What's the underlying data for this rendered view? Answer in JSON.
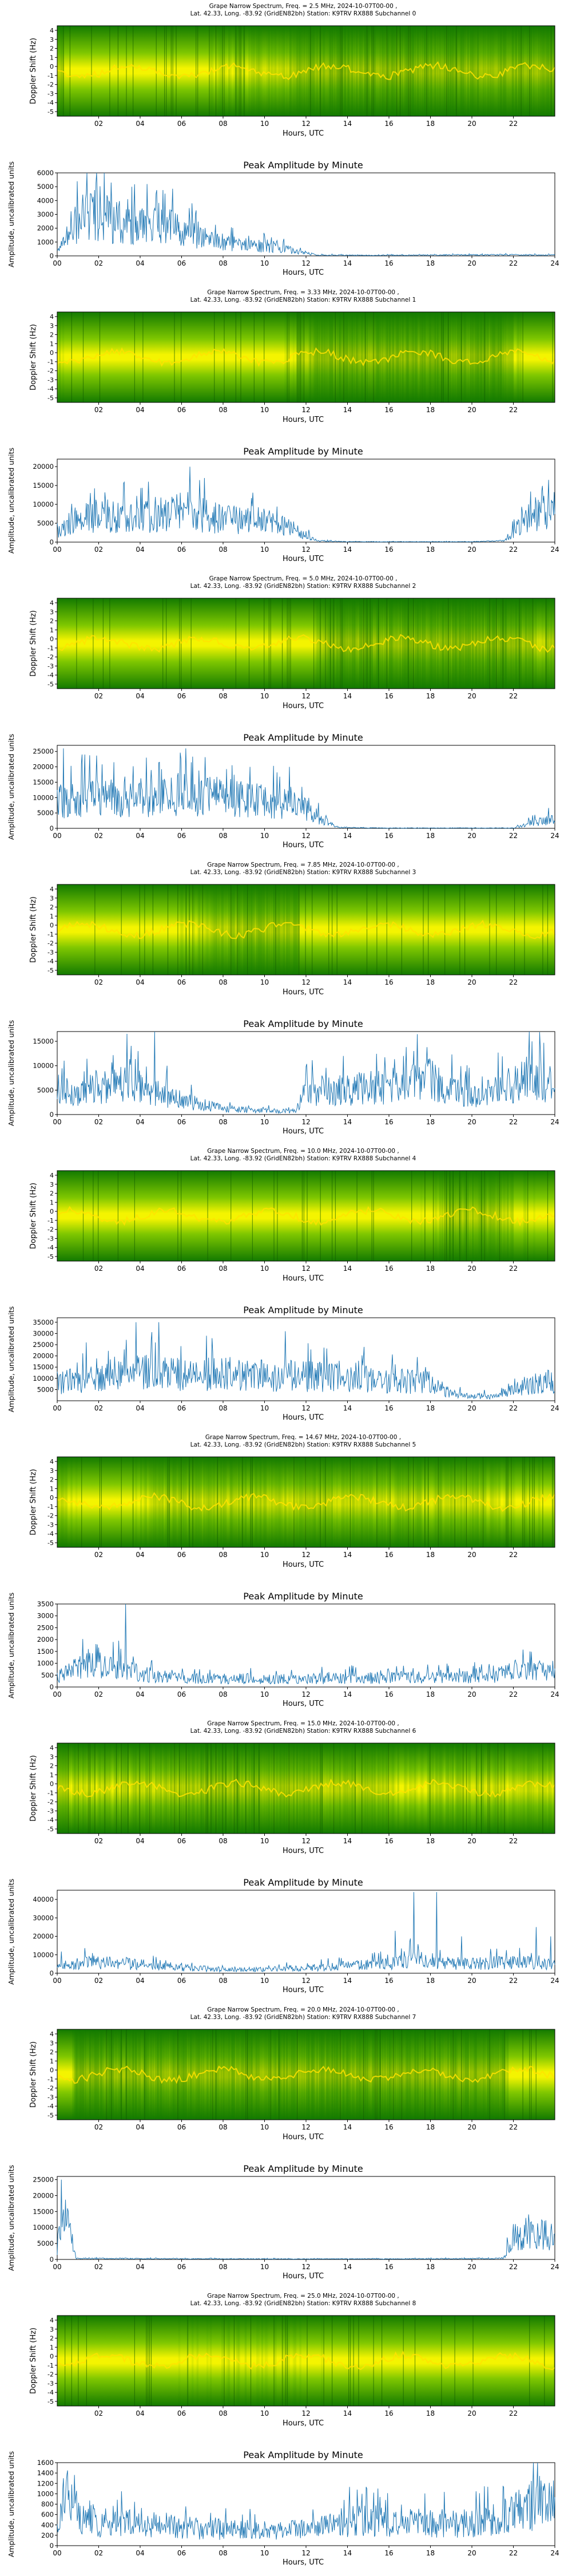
{
  "chart_data": {
    "type": "spectrogram+line",
    "xlabel": "Hours, UTC",
    "spectrum_ylabel": "Doppler Shift (Hz)",
    "spectrum_yticks": [
      "4",
      "3",
      "2",
      "1",
      "0",
      "-1",
      "-2",
      "-3",
      "-4",
      "-5"
    ],
    "spectrum_xticks": [
      "02",
      "04",
      "06",
      "08",
      "10",
      "12",
      "14",
      "16",
      "18",
      "20",
      "22"
    ],
    "amp_title": "Peak Amplitude by Minute",
    "amp_ylabel": "Amplitude, uncalibrated units",
    "amp_xticks": [
      "00",
      "02",
      "04",
      "06",
      "08",
      "10",
      "12",
      "14",
      "16",
      "18",
      "20",
      "22",
      "24"
    ],
    "xlim_hours": [
      0,
      24
    ],
    "colors": {
      "line": "#1f77b4",
      "spec_dark": "#137a00",
      "spec_mid": "#7fc700",
      "spec_bright": "#f4f400"
    },
    "panels": [
      {
        "title": "Grape Narrow Spectrum, Freq. = 2.5 MHz, 2024-10-07T00-00 ,",
        "subtitle": "Lat.  42.33, Long. -83.92 (GridEN82bh) Station: K9TRV RX888 Subchannel 0",
        "amp_yticks": [
          "0",
          "1000",
          "2000",
          "3000",
          "4000",
          "5000",
          "6000"
        ],
        "amp_ymax": 6000,
        "amp_profile": [
          [
            0,
            300
          ],
          [
            0.5,
            1200
          ],
          [
            1,
            2600
          ],
          [
            2,
            3000
          ],
          [
            3,
            2300
          ],
          [
            4,
            2100
          ],
          [
            5,
            2400
          ],
          [
            6,
            1900
          ],
          [
            7,
            1300
          ],
          [
            8,
            900
          ],
          [
            9,
            800
          ],
          [
            10,
            700
          ],
          [
            11,
            500
          ],
          [
            12,
            200
          ],
          [
            12.5,
            60
          ],
          [
            15,
            40
          ],
          [
            18,
            60
          ],
          [
            21,
            80
          ],
          [
            24,
            60
          ]
        ],
        "amp_spikes": [
          [
            1.9,
            6000
          ],
          [
            2.6,
            5300
          ],
          [
            5.2,
            4500
          ],
          [
            6.5,
            3800
          ],
          [
            3.4,
            4100
          ],
          [
            1.4,
            4500
          ]
        ]
      },
      {
        "title": "Grape Narrow Spectrum, Freq. = 3.33 MHz, 2024-10-07T00-00 ,",
        "subtitle": "Lat.  42.33, Long. -83.92 (GridEN82bh) Station: K9TRV RX888 Subchannel 1",
        "amp_yticks": [
          "0",
          "5000",
          "10000",
          "15000",
          "20000"
        ],
        "amp_ymax": 22000,
        "amp_profile": [
          [
            0,
            3000
          ],
          [
            1,
            6000
          ],
          [
            2,
            7000
          ],
          [
            4,
            6500
          ],
          [
            6,
            8000
          ],
          [
            7,
            7000
          ],
          [
            8,
            6000
          ],
          [
            9,
            6000
          ],
          [
            10,
            5500
          ],
          [
            11,
            4500
          ],
          [
            12,
            2000
          ],
          [
            12.5,
            300
          ],
          [
            14,
            100
          ],
          [
            20,
            100
          ],
          [
            21.5,
            300
          ],
          [
            22.5,
            5000
          ],
          [
            23.5,
            10000
          ],
          [
            24,
            8000
          ]
        ],
        "amp_spikes": [
          [
            6.4,
            20000
          ],
          [
            7.1,
            17000
          ],
          [
            4.4,
            16000
          ],
          [
            1.6,
            13000
          ],
          [
            23.7,
            16500
          ]
        ]
      },
      {
        "title": "Grape Narrow Spectrum, Freq. = 5.0 MHz, 2024-10-07T00-00 ,",
        "subtitle": "Lat.  42.33, Long. -83.92 (GridEN82bh) Station: K9TRV RX888 Subchannel 2",
        "amp_yticks": [
          "0",
          "5000",
          "10000",
          "15000",
          "20000",
          "25000"
        ],
        "amp_ymax": 27000,
        "amp_profile": [
          [
            0,
            9000
          ],
          [
            2,
            10000
          ],
          [
            4,
            10000
          ],
          [
            6,
            11000
          ],
          [
            8,
            10000
          ],
          [
            10,
            9000
          ],
          [
            11,
            8000
          ],
          [
            12,
            6000
          ],
          [
            13,
            2000
          ],
          [
            13.5,
            300
          ],
          [
            16,
            100
          ],
          [
            22,
            100
          ],
          [
            23,
            2000
          ],
          [
            24,
            3000
          ]
        ],
        "amp_spikes": [
          [
            0.3,
            26000
          ],
          [
            1.2,
            24000
          ],
          [
            4.3,
            23000
          ],
          [
            6.2,
            26000
          ],
          [
            9.3,
            20000
          ],
          [
            11.2,
            20000
          ]
        ]
      },
      {
        "title": "Grape Narrow Spectrum, Freq. = 7.85 MHz, 2024-10-07T00-00 ,",
        "subtitle": "Lat.  42.33, Long. -83.92 (GridEN82bh) Station: K9TRV RX888 Subchannel 3",
        "amp_yticks": [
          "0",
          "5000",
          "10000",
          "15000"
        ],
        "amp_ymax": 17000,
        "amp_profile": [
          [
            0,
            5000
          ],
          [
            1,
            4500
          ],
          [
            2,
            6000
          ],
          [
            3,
            7000
          ],
          [
            4,
            6000
          ],
          [
            5,
            4000
          ],
          [
            6,
            3000
          ],
          [
            7,
            2000
          ],
          [
            8,
            1200
          ],
          [
            10,
            800
          ],
          [
            11.5,
            600
          ],
          [
            12,
            5000
          ],
          [
            14,
            5000
          ],
          [
            16,
            6000
          ],
          [
            18,
            7000
          ],
          [
            19,
            5000
          ],
          [
            20,
            4000
          ],
          [
            22,
            6000
          ],
          [
            23,
            8000
          ],
          [
            24,
            5000
          ]
        ],
        "amp_spikes": [
          [
            4.7,
            17000
          ],
          [
            3.9,
            13000
          ],
          [
            5.3,
            10000
          ],
          [
            16.7,
            12000
          ],
          [
            22.9,
            15000
          ],
          [
            13.8,
            12000
          ]
        ]
      },
      {
        "title": "Grape Narrow Spectrum, Freq. = 10.0 MHz, 2024-10-07T00-00 ,",
        "subtitle": "Lat.  42.33, Long. -83.92 (GridEN82bh) Station: K9TRV RX888 Subchannel 4",
        "amp_yticks": [
          "5000",
          "10000",
          "15000",
          "20000",
          "25000",
          "30000",
          "35000"
        ],
        "amp_ymax": 37000,
        "amp_profile": [
          [
            0,
            8000
          ],
          [
            2,
            10000
          ],
          [
            4,
            13000
          ],
          [
            6,
            12000
          ],
          [
            8,
            12000
          ],
          [
            10,
            11000
          ],
          [
            12,
            11000
          ],
          [
            14,
            10000
          ],
          [
            16,
            9000
          ],
          [
            18,
            8000
          ],
          [
            19,
            3000
          ],
          [
            20,
            2000
          ],
          [
            21,
            2000
          ],
          [
            22,
            5000
          ],
          [
            23,
            8000
          ],
          [
            24,
            9000
          ]
        ],
        "amp_spikes": [
          [
            3.8,
            35000
          ],
          [
            4.9,
            35000
          ],
          [
            1.4,
            26000
          ],
          [
            11.0,
            31000
          ],
          [
            7.2,
            29000
          ],
          [
            14.8,
            24000
          ]
        ]
      },
      {
        "title": "Grape Narrow Spectrum, Freq. = 14.67 MHz, 2024-10-07T00-00 ,",
        "subtitle": "Lat.  42.33, Long. -83.92 (GridEN82bh) Station: K9TRV RX888 Subchannel 5",
        "amp_yticks": [
          "0",
          "500",
          "1000",
          "1500",
          "2000",
          "2500",
          "3000",
          "3500"
        ],
        "amp_ymax": 3500,
        "amp_profile": [
          [
            0,
            400
          ],
          [
            1,
            800
          ],
          [
            2,
            1000
          ],
          [
            3,
            800
          ],
          [
            4,
            600
          ],
          [
            5,
            400
          ],
          [
            7,
            350
          ],
          [
            10,
            350
          ],
          [
            13,
            350
          ],
          [
            16,
            400
          ],
          [
            19,
            400
          ],
          [
            21,
            450
          ],
          [
            22,
            700
          ],
          [
            24,
            600
          ]
        ],
        "amp_spikes": [
          [
            3.3,
            3500
          ],
          [
            2.7,
            1900
          ],
          [
            1.5,
            1600
          ],
          [
            22.8,
            1500
          ]
        ]
      },
      {
        "title": "Grape Narrow Spectrum, Freq. = 15.0 MHz, 2024-10-07T00-00 ,",
        "subtitle": "Lat.  42.33, Long. -83.92 (GridEN82bh) Station: K9TRV RX888 Subchannel 6",
        "amp_yticks": [
          "0",
          "10000",
          "20000",
          "30000",
          "40000"
        ],
        "amp_ymax": 45000,
        "amp_profile": [
          [
            0,
            5000
          ],
          [
            2,
            6000
          ],
          [
            4,
            5000
          ],
          [
            6,
            3000
          ],
          [
            8,
            2000
          ],
          [
            10,
            2000
          ],
          [
            12,
            3000
          ],
          [
            14,
            4000
          ],
          [
            16,
            5000
          ],
          [
            17,
            8000
          ],
          [
            18,
            6000
          ],
          [
            20,
            5000
          ],
          [
            22,
            6000
          ],
          [
            24,
            5000
          ]
        ],
        "amp_spikes": [
          [
            17.2,
            44000
          ],
          [
            18.3,
            44000
          ],
          [
            16.3,
            23000
          ],
          [
            23.1,
            25000
          ],
          [
            19.5,
            20000
          ],
          [
            23.8,
            20000
          ]
        ]
      },
      {
        "title": "Grape Narrow Spectrum, Freq. = 20.0 MHz, 2024-10-07T00-00 ,",
        "subtitle": "Lat.  42.33, Long. -83.92 (GridEN82bh) Station: K9TRV RX888 Subchannel 7",
        "amp_yticks": [
          "0",
          "5000",
          "10000",
          "15000",
          "20000",
          "25000"
        ],
        "amp_ymax": 26000,
        "amp_profile": [
          [
            0,
            4000
          ],
          [
            0.3,
            12000
          ],
          [
            0.6,
            9000
          ],
          [
            0.9,
            300
          ],
          [
            2,
            300
          ],
          [
            6,
            200
          ],
          [
            12,
            150
          ],
          [
            18,
            200
          ],
          [
            21.5,
            300
          ],
          [
            22,
            7000
          ],
          [
            23,
            8000
          ],
          [
            24,
            7000
          ]
        ],
        "amp_spikes": [
          [
            0.2,
            25000
          ],
          [
            0.5,
            16000
          ],
          [
            22.6,
            13000
          ],
          [
            23.4,
            12000
          ]
        ]
      },
      {
        "title": "Grape Narrow Spectrum, Freq. = 25.0 MHz, 2024-10-07T00-00 ,",
        "subtitle": "Lat.  42.33, Long. -83.92 (GridEN82bh) Station: K9TRV RX888 Subchannel 8",
        "amp_yticks": [
          "0",
          "200",
          "400",
          "600",
          "800",
          "1000",
          "1200",
          "1400",
          "1600"
        ],
        "amp_ymax": 1600,
        "amp_profile": [
          [
            0,
            300
          ],
          [
            0.5,
            1000
          ],
          [
            1,
            600
          ],
          [
            2,
            400
          ],
          [
            4,
            450
          ],
          [
            6,
            350
          ],
          [
            8,
            300
          ],
          [
            10,
            300
          ],
          [
            12,
            300
          ],
          [
            14,
            450
          ],
          [
            15,
            500
          ],
          [
            16,
            450
          ],
          [
            18,
            400
          ],
          [
            20,
            450
          ],
          [
            22,
            600
          ],
          [
            23,
            800
          ],
          [
            24,
            900
          ]
        ],
        "amp_spikes": [
          [
            0.5,
            1450
          ],
          [
            0.3,
            1300
          ],
          [
            14.7,
            1000
          ],
          [
            23.5,
            1200
          ]
        ]
      }
    ]
  }
}
